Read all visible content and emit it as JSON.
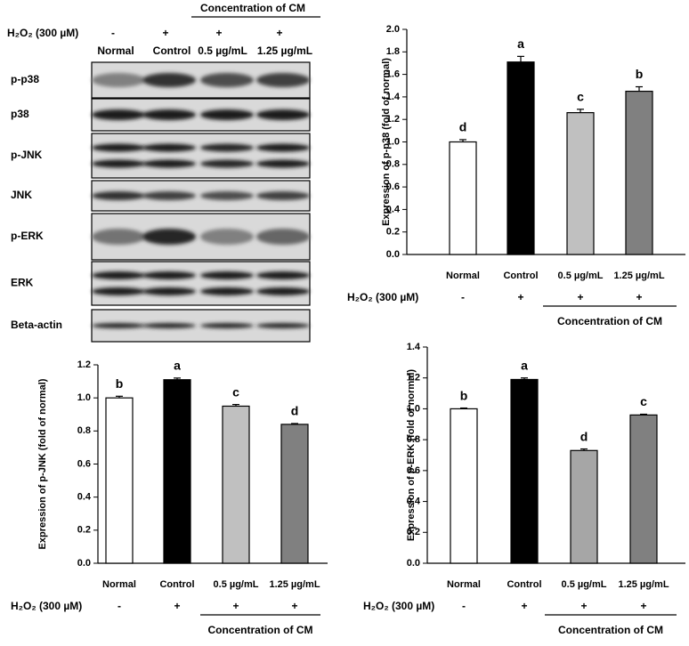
{
  "blot": {
    "treatment_label": "H₂O₂ (300 µM)",
    "treatment_signs": [
      "-",
      "+",
      "+",
      "+"
    ],
    "group_label": "Concentration of CM",
    "lanes": [
      "Normal",
      "Control",
      "0.5 µg/mL",
      "1.25 µg/mL"
    ],
    "bands": [
      "p-p38",
      "p38",
      "p-JNK",
      "JNK",
      "p-ERK",
      "ERK",
      "Beta-actin"
    ]
  },
  "chart_data": [
    {
      "type": "bar",
      "ylabel": "Expression of p-p38 (fold of normal)",
      "categories": [
        "Normal",
        "Control",
        "0.5 µg/mL",
        "1.25 µg/mL"
      ],
      "values": [
        1.0,
        1.71,
        1.26,
        1.45
      ],
      "errors": [
        0.02,
        0.05,
        0.03,
        0.04
      ],
      "colors": [
        "#ffffff",
        "#000000",
        "#c0c0c0",
        "#808080"
      ],
      "annotations": [
        "d",
        "a",
        "c",
        "b"
      ],
      "ylim": [
        0,
        2
      ],
      "yticks": [
        {
          "value": 0,
          "label": "0.0"
        },
        0.2,
        0.4,
        0.6,
        0.8,
        {
          "value": 1,
          "label": "1.0"
        },
        1.2,
        1.4,
        1.6,
        1.8,
        {
          "value": 2,
          "label": "2.0"
        }
      ],
      "treatment_label": "H₂O₂ (300 µM)",
      "treatment_signs": [
        "-",
        "+",
        "+",
        "+"
      ],
      "group_label": "Concentration of CM"
    },
    {
      "type": "bar",
      "ylabel": "Expression of p-JNK (fold of normal)",
      "categories": [
        "Normal",
        "Control",
        "0.5 µg/mL",
        "1.25 µg/mL"
      ],
      "values": [
        1.0,
        1.11,
        0.95,
        0.84
      ],
      "errors": [
        0.01,
        0.01,
        0.01,
        0.005
      ],
      "colors": [
        "#ffffff",
        "#000000",
        "#c0c0c0",
        "#808080"
      ],
      "annotations": [
        "b",
        "a",
        "c",
        "d"
      ],
      "ylim": [
        0,
        1.2
      ],
      "yticks": [
        {
          "value": 0,
          "label": "0.0"
        },
        0.2,
        0.4,
        0.6,
        0.8,
        {
          "value": 1,
          "label": "1.0"
        },
        1.2
      ],
      "treatment_label": "H₂O₂ (300 µM)",
      "treatment_signs": [
        "-",
        "+",
        "+",
        "+"
      ],
      "group_label": "Concentration of CM"
    },
    {
      "type": "bar",
      "ylabel": "Expression of p-ERK (fold of normal)",
      "categories": [
        "Normal",
        "Control",
        "0.5 µg/mL",
        "1.25 µg/mL"
      ],
      "values": [
        1.0,
        1.19,
        0.73,
        0.96
      ],
      "errors": [
        0.005,
        0.01,
        0.01,
        0.005
      ],
      "colors": [
        "#ffffff",
        "#000000",
        "#a6a6a6",
        "#808080"
      ],
      "annotations": [
        "b",
        "a",
        "d",
        "c"
      ],
      "ylim": [
        0,
        1.4
      ],
      "yticks": [
        {
          "value": 0,
          "label": "0.0"
        },
        0.2,
        0.4,
        0.6,
        0.8,
        {
          "value": 1,
          "label": "1.0"
        },
        1.2,
        1.4
      ],
      "treatment_label": "H₂O₂ (300 µM)",
      "treatment_signs": [
        "-",
        "+",
        "+",
        "+"
      ],
      "group_label": "Concentration of CM"
    }
  ]
}
